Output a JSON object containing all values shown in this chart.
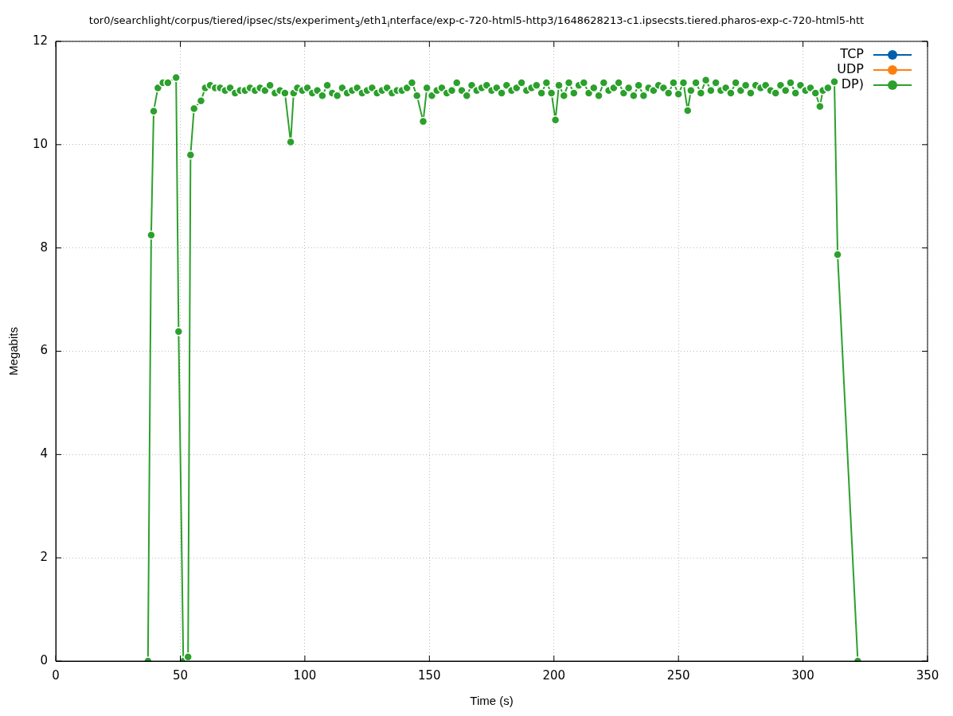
{
  "chart_data": {
    "type": "line",
    "title": "tor0/searchlight/corpus/tiered/ipsec/sts/experiment$_{3}$/eth1$_{i}$nterface/exp-c-720-html5-http3/1648628213-c1.ipsecsts.tiered.pharos-exp-c-720-html5-htt",
    "xlabel": "Time (s)",
    "ylabel": "Megabits",
    "x": [
      37,
      38.3,
      39.3,
      41,
      43,
      45,
      48.3,
      49.3,
      51.2,
      53.1,
      54.1,
      55.5,
      58.3,
      60,
      62,
      64,
      66,
      68,
      70,
      72,
      74,
      76,
      78,
      80,
      82,
      84,
      86,
      88,
      90,
      92,
      94.3,
      95.5,
      97,
      99,
      101,
      103,
      105,
      107,
      109,
      111,
      113,
      115,
      117,
      119,
      121,
      123,
      125,
      127,
      129,
      131,
      133,
      135,
      137,
      139,
      141,
      143,
      145,
      147.5,
      149,
      151,
      153,
      155,
      157,
      159,
      161,
      163,
      165,
      167,
      169,
      171,
      173,
      175,
      177,
      179,
      181,
      183,
      185,
      187,
      189,
      191,
      193,
      195,
      197,
      199,
      200.6,
      202,
      204,
      206,
      208,
      210,
      212,
      214,
      216,
      218,
      220,
      222,
      224,
      226,
      228,
      230,
      232,
      234,
      236,
      238,
      240,
      242,
      244,
      246,
      248,
      250,
      252,
      253.7,
      255,
      257,
      259,
      261,
      263,
      265,
      267,
      269,
      271,
      273,
      275,
      277,
      279,
      281,
      283,
      285,
      287,
      289,
      291,
      293,
      295,
      297,
      299,
      301,
      303,
      305,
      306.8,
      308,
      310,
      312.6,
      313.9,
      322
    ],
    "series": [
      {
        "name": "TCP",
        "color": "#0060ad",
        "values": [
          null,
          null,
          null,
          null,
          null,
          null,
          null,
          null,
          null,
          null,
          null,
          null,
          null,
          null,
          null,
          null,
          null,
          null,
          null,
          null,
          null,
          null,
          null,
          null,
          null,
          null,
          null,
          null,
          null,
          null,
          null,
          null,
          null,
          null,
          null,
          null,
          null,
          null,
          null,
          null,
          null,
          null,
          null,
          null,
          null,
          null,
          null,
          null,
          null,
          null,
          null,
          null,
          null,
          null,
          null,
          null,
          null,
          null,
          null,
          null,
          null,
          null,
          null,
          null,
          null,
          null,
          null,
          null,
          null,
          null,
          null,
          null,
          null,
          null,
          null,
          null,
          null,
          null,
          null,
          null,
          null,
          null,
          null,
          null,
          null,
          null,
          null,
          null,
          null,
          null,
          null,
          null,
          null,
          null,
          null,
          null,
          null,
          null,
          null,
          null,
          null,
          null,
          null,
          null,
          null,
          null,
          null,
          null,
          null,
          null,
          null,
          null,
          null,
          null,
          null,
          null,
          null,
          null,
          null,
          null,
          null,
          null,
          null,
          null,
          null,
          null,
          null,
          null,
          null,
          null,
          null,
          null,
          null,
          null,
          null,
          null,
          null,
          null,
          null,
          null,
          null,
          null,
          null,
          null
        ]
      },
      {
        "name": "UDP",
        "color": "#ff7f0e",
        "values": [
          null,
          null,
          null,
          null,
          null,
          null,
          null,
          null,
          null,
          null,
          null,
          null,
          null,
          null,
          null,
          null,
          null,
          null,
          null,
          null,
          null,
          null,
          null,
          null,
          null,
          null,
          null,
          null,
          null,
          null,
          null,
          null,
          null,
          null,
          null,
          null,
          null,
          null,
          null,
          null,
          null,
          null,
          null,
          null,
          null,
          null,
          null,
          null,
          null,
          null,
          null,
          null,
          null,
          null,
          null,
          null,
          null,
          null,
          null,
          null,
          null,
          null,
          null,
          null,
          null,
          null,
          null,
          null,
          null,
          null,
          null,
          null,
          null,
          null,
          null,
          null,
          null,
          null,
          null,
          null,
          null,
          null,
          null,
          null,
          null,
          null,
          null,
          null,
          null,
          null,
          null,
          null,
          null,
          null,
          null,
          null,
          null,
          null,
          null,
          null,
          null,
          null,
          null,
          null,
          null,
          null,
          null,
          null,
          null,
          null,
          null,
          null,
          null,
          null,
          null,
          null,
          null,
          null,
          null,
          null,
          null,
          null,
          null,
          null,
          null,
          null,
          null,
          null,
          null,
          null,
          null,
          null,
          null,
          null,
          null,
          null,
          null,
          null,
          null,
          null,
          null,
          null,
          null,
          null
        ]
      },
      {
        "name": "DP)",
        "color": "#2ca02c",
        "values": [
          0,
          8.25,
          10.65,
          11.1,
          11.2,
          11.2,
          11.3,
          6.38,
          0,
          0.08,
          9.8,
          10.7,
          10.85,
          11.1,
          11.15,
          11.1,
          11.1,
          11.05,
          11.1,
          11.0,
          11.05,
          11.05,
          11.1,
          11.05,
          11.1,
          11.05,
          11.15,
          11.0,
          11.05,
          11.0,
          10.05,
          11.0,
          11.1,
          11.05,
          11.1,
          11.0,
          11.05,
          10.95,
          11.15,
          11.0,
          10.95,
          11.1,
          11.0,
          11.05,
          11.1,
          11.0,
          11.05,
          11.1,
          11.0,
          11.05,
          11.1,
          11.0,
          11.05,
          11.05,
          11.1,
          11.2,
          10.95,
          10.45,
          11.1,
          10.95,
          11.05,
          11.1,
          11.0,
          11.05,
          11.2,
          11.05,
          10.95,
          11.15,
          11.05,
          11.1,
          11.15,
          11.05,
          11.1,
          11.0,
          11.15,
          11.05,
          11.1,
          11.2,
          11.05,
          11.1,
          11.15,
          11.0,
          11.2,
          11.0,
          10.48,
          11.15,
          10.95,
          11.2,
          11.0,
          11.15,
          11.2,
          11.0,
          11.1,
          10.95,
          11.2,
          11.05,
          11.1,
          11.2,
          11.0,
          11.1,
          10.95,
          11.15,
          10.95,
          11.1,
          11.05,
          11.15,
          11.1,
          11.0,
          11.2,
          10.98,
          11.2,
          10.66,
          11.05,
          11.2,
          11.0,
          11.25,
          11.05,
          11.2,
          11.05,
          11.1,
          11.0,
          11.2,
          11.05,
          11.15,
          11.0,
          11.15,
          11.1,
          11.15,
          11.05,
          11.0,
          11.15,
          11.05,
          11.2,
          11.0,
          11.15,
          11.05,
          11.1,
          11.0,
          10.74,
          11.05,
          11.1,
          11.22,
          7.87,
          0
        ]
      }
    ],
    "xlim": [
      0,
      350
    ],
    "xticks": [
      0,
      50,
      100,
      150,
      200,
      250,
      300,
      350
    ],
    "ylim": [
      0,
      12
    ],
    "yticks": [
      0,
      2,
      4,
      6,
      8,
      10,
      12
    ],
    "grid": true,
    "legend": "top right",
    "marker": "circle",
    "line_style": "solid"
  }
}
